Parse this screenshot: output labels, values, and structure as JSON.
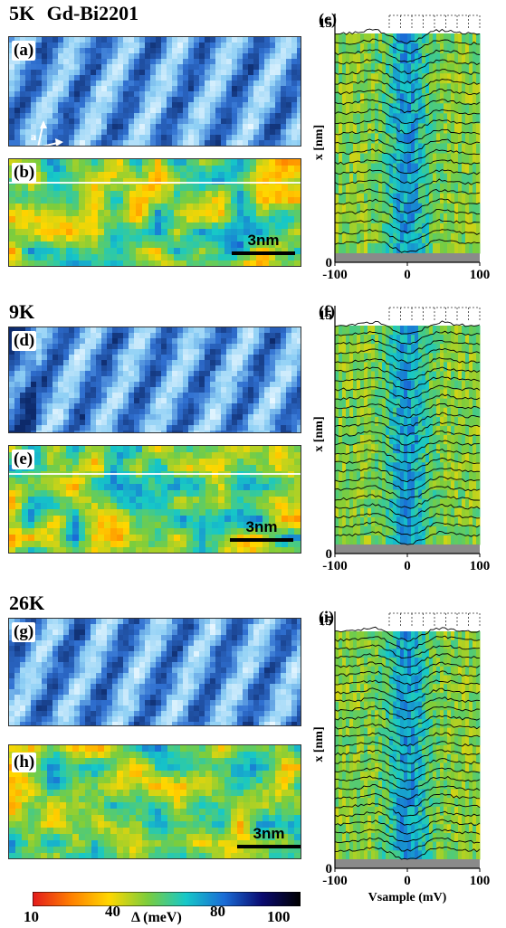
{
  "figure": {
    "rows": [
      {
        "temperature": "5K",
        "sample": "Gd-Bi2201",
        "topo_label": "(a)",
        "gap_label": "(b)",
        "line_label": "(c)",
        "lattice": {
          "a": "a",
          "b": "b"
        },
        "scale": "3nm"
      },
      {
        "temperature": "9K",
        "topo_label": "(d)",
        "gap_label": "(e)",
        "line_label": "(f)",
        "scale": "3nm"
      },
      {
        "temperature": "26K",
        "topo_label": "(g)",
        "gap_label": "(h)",
        "line_label": "(i)",
        "scale": "3nm"
      }
    ],
    "colorbar": {
      "ticks": [
        "10",
        "40",
        "80",
        "100"
      ],
      "label": "Δ (meV)",
      "colors": [
        "#e31a1c",
        "#ff7f00",
        "#ffd700",
        "#7ccd3c",
        "#16c8c8",
        "#1a6cd6",
        "#0a0a70",
        "#000000"
      ]
    },
    "topo_colors": [
      "#0d2a6b",
      "#2f6fd0",
      "#8fd0f5",
      "#e8f7ff"
    ]
  },
  "chart_data": [
    {
      "type": "line",
      "panel": "(c)",
      "xlabel": "",
      "ylabel": "x [nm]",
      "xlim": [
        -100,
        100
      ],
      "ylim": [
        0,
        15
      ],
      "xticks": [
        "-100",
        "0",
        "100"
      ],
      "yticks": [
        "0",
        "15"
      ],
      "curve_count": 22
    },
    {
      "type": "line",
      "panel": "(f)",
      "xlabel": "",
      "ylabel": "x [nm]",
      "xlim": [
        -100,
        100
      ],
      "ylim": [
        0,
        15
      ],
      "xticks": [
        "-100",
        "0",
        "100"
      ],
      "yticks": [
        "0",
        "15"
      ],
      "curve_count": 24
    },
    {
      "type": "line",
      "panel": "(i)",
      "xlabel": "Vsample (mV)",
      "ylabel": "x [nm]",
      "xlim": [
        -100,
        100
      ],
      "ylim": [
        0,
        15
      ],
      "xticks": [
        "-100",
        "0",
        "100"
      ],
      "yticks": [
        "0",
        "15"
      ],
      "curve_count": 26
    }
  ]
}
